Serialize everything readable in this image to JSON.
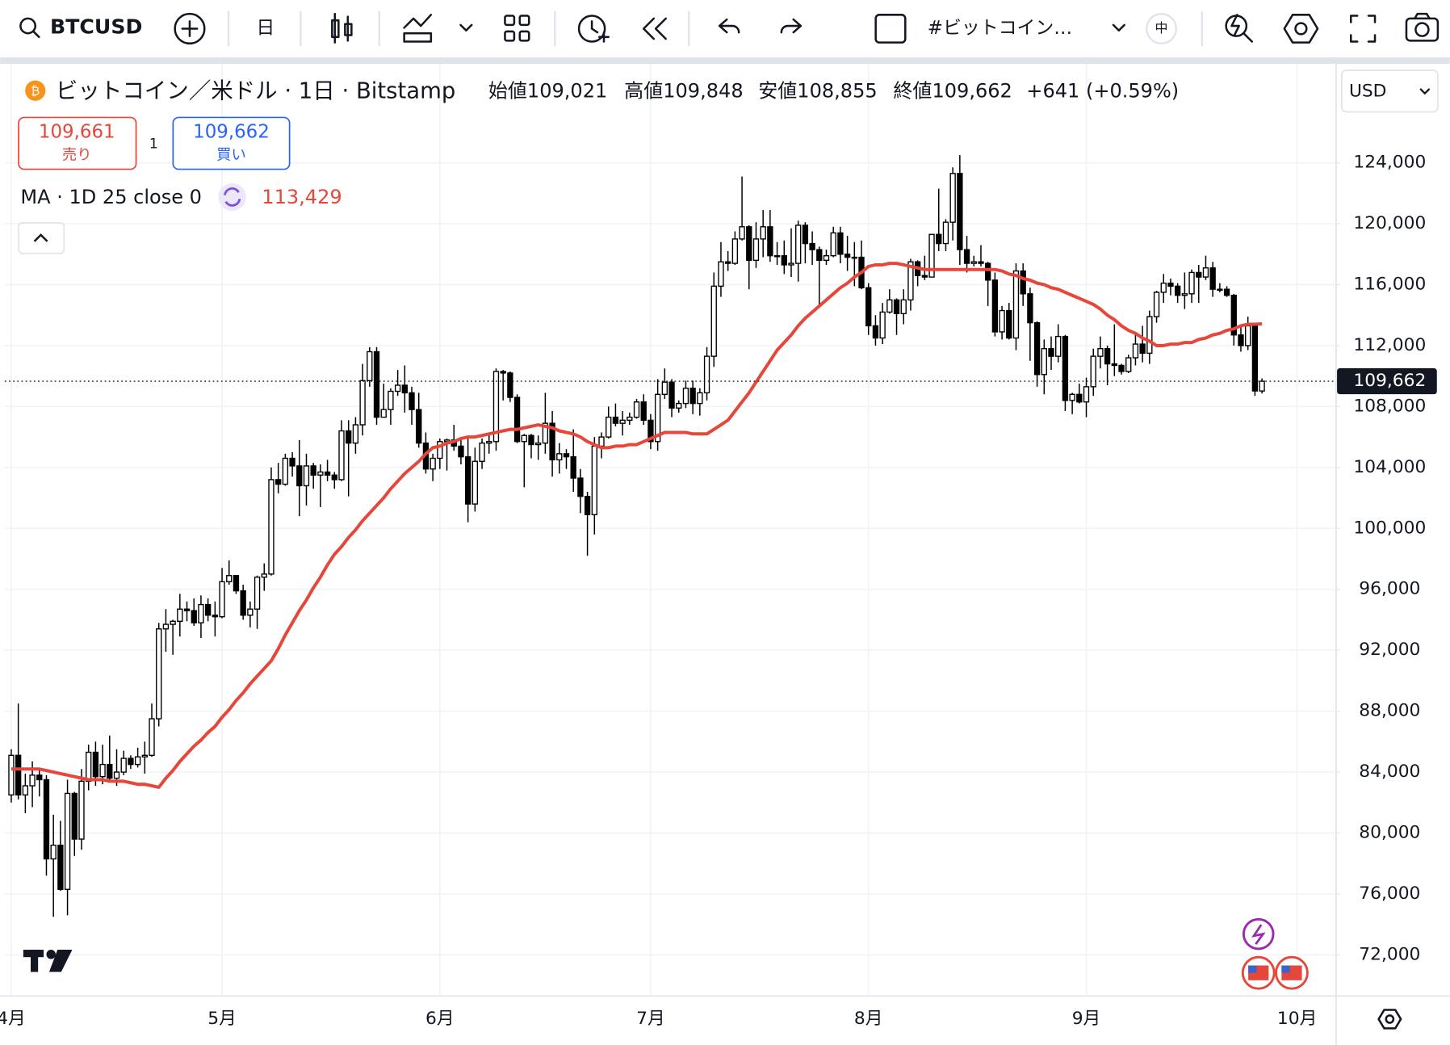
{
  "toolbar": {
    "symbol": "BTCUSD",
    "interval": "日",
    "watchlist": "#ビットコイン…",
    "lang": "中"
  },
  "legend": {
    "title": "ビットコイン／米ドル · 1日 · Bitstamp",
    "stats": [
      {
        "name": "始値",
        "value": "109,021"
      },
      {
        "name": "高値",
        "value": "109,848"
      },
      {
        "name": "安値",
        "value": "108,855"
      },
      {
        "name": "終値",
        "value": "109,662"
      }
    ],
    "change": "+641 (+0.59%)",
    "sell": {
      "price": "109,661",
      "label": "売り"
    },
    "spread": "1",
    "buy": {
      "price": "109,662",
      "label": "買い"
    },
    "currency": "USD"
  },
  "chart_data": {
    "type": "candlestick",
    "categories": [
      "4月",
      null,
      null,
      null,
      null,
      null,
      null,
      null,
      null,
      null,
      null,
      null,
      null,
      null,
      null,
      null,
      null,
      null,
      null,
      null,
      null,
      null,
      null,
      null,
      null,
      null,
      null,
      null,
      null,
      null,
      "5月",
      null,
      null,
      null,
      null,
      null,
      null,
      null,
      null,
      null,
      null,
      null,
      null,
      null,
      null,
      null,
      null,
      null,
      null,
      null,
      null,
      null,
      null,
      null,
      null,
      null,
      null,
      null,
      null,
      null,
      null,
      "6月",
      null,
      null,
      null,
      null,
      null,
      null,
      null,
      null,
      null,
      null,
      null,
      null,
      null,
      null,
      null,
      null,
      null,
      null,
      null,
      null,
      null,
      null,
      null,
      null,
      null,
      null,
      null,
      null,
      null,
      "7月",
      null,
      null,
      null,
      null,
      null,
      null,
      null,
      null,
      null,
      null,
      null,
      null,
      null,
      null,
      null,
      null,
      null,
      null,
      null,
      null,
      null,
      null,
      null,
      null,
      null,
      null,
      null,
      null,
      null,
      null,
      "8月",
      null,
      null,
      null,
      null,
      null,
      null,
      null,
      null,
      null,
      null,
      null,
      null,
      null,
      null,
      null,
      null,
      null,
      null,
      null,
      null,
      null,
      null,
      null,
      null,
      null,
      null,
      null,
      null,
      null,
      null,
      "9月",
      null,
      null,
      null,
      null,
      null,
      null,
      null,
      null,
      null,
      null,
      null,
      null,
      null,
      null,
      null,
      null,
      null,
      null,
      null,
      null,
      null,
      null,
      null,
      null,
      null,
      null,
      null,
      null,
      null,
      "10月",
      null,
      null,
      null,
      null,
      null,
      null
    ],
    "open": [
      82500,
      85100,
      82500,
      83100,
      83800,
      83500,
      78300,
      79200,
      76300,
      82600,
      79600,
      83400,
      85300,
      83700,
      84500,
      83600,
      84000,
      84900,
      84500,
      85000,
      85100,
      87500,
      93400,
      93700,
      93900,
      94700,
      94600,
      93800,
      95000,
      94300,
      94200,
      96500,
      96900,
      95900,
      94300,
      94700,
      96800,
      97000,
      103200,
      102900,
      104600,
      104100,
      102800,
      104100,
      103500,
      103700,
      103500,
      103200,
      106400,
      105600,
      106800,
      109700,
      111600,
      107300,
      107800,
      109000,
      109400,
      108900,
      107800,
      105600,
      103900,
      104600,
      105700,
      105800,
      105400,
      104700,
      101600,
      104400,
      105600,
      105700,
      110300,
      110200,
      108600,
      105700,
      106100,
      105500,
      105600,
      106900,
      104500,
      104900,
      104700,
      103300,
      102100,
      100900,
      105400,
      106000,
      107300,
      106900,
      107100,
      107300,
      108300,
      107100,
      105700,
      108800,
      109600,
      107900,
      108200,
      109200,
      108200,
      108900,
      111300,
      115900,
      117500,
      117400,
      119000,
      119800,
      117600,
      119000,
      119800,
      117900,
      117900,
      117300,
      117400,
      119900,
      118700,
      118300,
      117600,
      117900,
      119400,
      118000,
      117800,
      117800,
      115800,
      113300,
      112500,
      114200,
      115000,
      114100,
      115000,
      117500,
      116600,
      116500,
      119300,
      118700,
      120100,
      123300,
      118300,
      117400,
      117500,
      117400,
      116300,
      112900,
      114300,
      112500,
      116900,
      115400,
      113500,
      110100,
      111800,
      111300,
      112600,
      108400,
      108800,
      108300,
      109300,
      111300,
      111800,
      110800,
      110700,
      110300,
      111200,
      112100,
      111500,
      113900,
      115500,
      116100,
      115900,
      115300,
      115400,
      116800,
      116500,
      117100,
      115700,
      115700,
      115300,
      112700,
      112000,
      113300,
      109021,
      null,
      null,
      null,
      null,
      null,
      null,
      null,
      null,
      null,
      null,
      null
    ],
    "high": [
      85500,
      88500,
      83900,
      84700,
      84200,
      83800,
      81200,
      80800,
      83500,
      82700,
      84200,
      85800,
      86000,
      85800,
      86400,
      85500,
      85400,
      85100,
      85600,
      86000,
      88500,
      93800,
      94700,
      94000,
      95700,
      95200,
      95400,
      95600,
      95400,
      95200,
      97400,
      97900,
      96900,
      96300,
      95200,
      96900,
      97700,
      104000,
      104300,
      104900,
      105000,
      105800,
      104900,
      104300,
      104200,
      104500,
      103700,
      107100,
      107100,
      107300,
      110800,
      111900,
      111900,
      109500,
      109200,
      110400,
      110700,
      109300,
      108900,
      106300,
      104900,
      105900,
      105900,
      106800,
      106000,
      105900,
      105300,
      105900,
      106300,
      110500,
      110400,
      110300,
      108800,
      106200,
      106200,
      106100,
      108900,
      107700,
      105600,
      105200,
      106500,
      103900,
      102400,
      106000,
      106300,
      108000,
      108200,
      107700,
      107600,
      108500,
      108800,
      107500,
      109800,
      110500,
      109800,
      108400,
      109700,
      109700,
      109200,
      111900,
      116800,
      118800,
      118200,
      119500,
      123100,
      119900,
      120100,
      120900,
      120900,
      118800,
      118900,
      119700,
      120200,
      120100,
      119500,
      118500,
      118300,
      119800,
      119800,
      119200,
      118800,
      118900,
      116100,
      114000,
      114800,
      115700,
      115100,
      115700,
      117700,
      117600,
      117900,
      119300,
      122300,
      120300,
      123700,
      124500,
      119200,
      117900,
      118600,
      117500,
      116800,
      114600,
      114800,
      117400,
      117400,
      115800,
      113600,
      112400,
      112600,
      113400,
      112700,
      108900,
      109500,
      109900,
      111800,
      112600,
      112000,
      113400,
      110800,
      111400,
      112900,
      113300,
      114300,
      115600,
      116700,
      116400,
      116100,
      116800,
      117000,
      117300,
      117900,
      117500,
      116100,
      115900,
      115400,
      113300,
      113900,
      113400,
      109848,
      null,
      null,
      null,
      null,
      null,
      null,
      null,
      null,
      null,
      null,
      null
    ],
    "low": [
      82000,
      82200,
      81300,
      81700,
      82400,
      77200,
      74500,
      76200,
      74600,
      78500,
      78900,
      82800,
      83100,
      83200,
      83500,
      83100,
      83800,
      84200,
      84300,
      83900,
      85000,
      87000,
      91900,
      91700,
      92900,
      93900,
      93600,
      92800,
      93900,
      92900,
      94100,
      96300,
      95700,
      94000,
      93500,
      93400,
      95900,
      96900,
      102300,
      102800,
      103400,
      100800,
      101500,
      102600,
      101400,
      103100,
      102600,
      103100,
      102100,
      104900,
      106100,
      109300,
      106800,
      107300,
      106800,
      108700,
      107600,
      106800,
      105300,
      103600,
      103100,
      103900,
      103800,
      105100,
      104200,
      100400,
      101100,
      103900,
      104900,
      105100,
      108400,
      108300,
      105600,
      102700,
      104600,
      104500,
      104900,
      103400,
      103600,
      103900,
      102400,
      101000,
      98200,
      99600,
      104600,
      105900,
      106700,
      106100,
      106800,
      107200,
      106800,
      105200,
      105100,
      108500,
      107300,
      107600,
      107900,
      107500,
      107400,
      108400,
      110600,
      115200,
      116900,
      117300,
      118900,
      115700,
      117100,
      117800,
      117500,
      117300,
      116700,
      116500,
      116200,
      117400,
      117300,
      114700,
      117300,
      117800,
      117400,
      116900,
      115900,
      115700,
      112700,
      112000,
      112100,
      114100,
      112700,
      113400,
      114300,
      115900,
      116300,
      116500,
      118200,
      118200,
      118900,
      117300,
      116800,
      117200,
      117200,
      114600,
      112600,
      112400,
      112400,
      111700,
      114600,
      111000,
      109300,
      108800,
      110400,
      110900,
      107700,
      107500,
      108200,
      107300,
      108700,
      110500,
      109400,
      110000,
      110100,
      110200,
      110700,
      110900,
      110800,
      113500,
      114800,
      115300,
      114800,
      114400,
      114800,
      114800,
      116300,
      115200,
      115500,
      115200,
      112000,
      111600,
      111700,
      108700,
      108855,
      null,
      null,
      null,
      null,
      null,
      null,
      null,
      null,
      null,
      null,
      null
    ],
    "close": [
      85100,
      82500,
      83100,
      83800,
      83500,
      78300,
      79200,
      76300,
      82600,
      79600,
      83400,
      85300,
      83700,
      84500,
      83600,
      84000,
      84900,
      84500,
      85000,
      85100,
      87500,
      93400,
      93700,
      93900,
      94700,
      94600,
      93800,
      95000,
      94300,
      94200,
      96500,
      96900,
      95900,
      94300,
      94700,
      96800,
      97000,
      103200,
      102900,
      104600,
      104100,
      102800,
      104100,
      103500,
      103700,
      103500,
      103200,
      106400,
      105600,
      106800,
      109700,
      111600,
      107300,
      107800,
      109000,
      109400,
      108900,
      107800,
      105600,
      103900,
      104600,
      105700,
      105800,
      105400,
      104700,
      101600,
      104400,
      105600,
      105700,
      110300,
      110200,
      108600,
      105700,
      106100,
      105500,
      105600,
      106900,
      104500,
      104900,
      104700,
      103300,
      102100,
      100900,
      105400,
      106000,
      107300,
      106900,
      107100,
      107300,
      108300,
      107100,
      105700,
      108800,
      109600,
      107900,
      108200,
      109200,
      108200,
      108900,
      111300,
      115900,
      117500,
      117400,
      119000,
      119800,
      117600,
      119000,
      119800,
      117900,
      117900,
      117300,
      117400,
      119900,
      118700,
      118300,
      117600,
      117900,
      119400,
      118000,
      117800,
      117800,
      115800,
      113300,
      112500,
      114200,
      115000,
      114100,
      115000,
      117500,
      116600,
      116500,
      119300,
      118700,
      120100,
      123300,
      118300,
      117400,
      117500,
      117400,
      116300,
      112900,
      114300,
      112500,
      116900,
      115400,
      113500,
      110100,
      111800,
      111300,
      112600,
      108400,
      108800,
      108300,
      109300,
      111300,
      111800,
      110800,
      110700,
      110300,
      111200,
      112100,
      111500,
      113900,
      115500,
      116100,
      115900,
      115300,
      115400,
      116800,
      116500,
      117100,
      115700,
      115700,
      115300,
      112700,
      112000,
      113300,
      109021,
      109662,
      null,
      null,
      null,
      null,
      null,
      null,
      null,
      null,
      null,
      null,
      null
    ],
    "up_color": "#ffffff",
    "down_color": "#000000",
    "overlays": [
      {
        "name": "MA · 1D 25 close 0",
        "color": "#e5473b",
        "last_label": "113,429",
        "values": [
          84200,
          84200,
          84200,
          84200,
          84200,
          84100,
          84000,
          83900,
          83800,
          83700,
          83600,
          83500,
          83500,
          83500,
          83400,
          83400,
          83400,
          83300,
          83200,
          83200,
          83100,
          83000,
          83600,
          84100,
          84700,
          85200,
          85700,
          86100,
          86600,
          87000,
          87600,
          88100,
          88700,
          89200,
          89800,
          90300,
          90800,
          91300,
          92100,
          93000,
          93800,
          94600,
          95300,
          96100,
          96800,
          97600,
          98300,
          98800,
          99400,
          99900,
          100500,
          101000,
          101500,
          102000,
          102600,
          103100,
          103600,
          104000,
          104400,
          104900,
          105300,
          105400,
          105600,
          105700,
          105900,
          106000,
          106000,
          106100,
          106200,
          106300,
          106400,
          106500,
          106500,
          106600,
          106700,
          106800,
          106700,
          106600,
          106400,
          106300,
          106200,
          106000,
          105700,
          105500,
          105300,
          105300,
          105400,
          105400,
          105500,
          105500,
          105700,
          105900,
          106100,
          106300,
          106300,
          106300,
          106300,
          106200,
          106200,
          106200,
          106500,
          106800,
          107100,
          107700,
          108300,
          108900,
          109600,
          110300,
          111000,
          111700,
          112200,
          112700,
          113300,
          113800,
          114200,
          114600,
          115000,
          115400,
          115800,
          116100,
          116500,
          116800,
          117200,
          117300,
          117300,
          117400,
          117400,
          117300,
          117200,
          117100,
          117000,
          117000,
          117000,
          117000,
          117000,
          117000,
          117000,
          117000,
          117000,
          117000,
          117000,
          116900,
          116700,
          116600,
          116400,
          116300,
          116100,
          116000,
          115800,
          115700,
          115500,
          115300,
          115100,
          114900,
          114700,
          114400,
          114000,
          113700,
          113300,
          113000,
          112800,
          112500,
          112300,
          112000,
          112000,
          112100,
          112100,
          112200,
          112200,
          112400,
          112500,
          112700,
          112800,
          113000,
          113100,
          113300,
          113400,
          113400,
          113429,
          null,
          null,
          null,
          null,
          null,
          null,
          null,
          null,
          null,
          null,
          null
        ]
      }
    ],
    "ylim": [
      69300,
      130500
    ],
    "yticks": [
      {
        "value": 72000,
        "label": "72,000"
      },
      {
        "value": 76000,
        "label": "76,000"
      },
      {
        "value": 80000,
        "label": "80,000"
      },
      {
        "value": 84000,
        "label": "84,000"
      },
      {
        "value": 88000,
        "label": "88,000"
      },
      {
        "value": 92000,
        "label": "92,000"
      },
      {
        "value": 96000,
        "label": "96,000"
      },
      {
        "value": 100000,
        "label": "100,000"
      },
      {
        "value": 104000,
        "label": "104,000"
      },
      {
        "value": 108000,
        "label": "108,000"
      },
      {
        "value": 112000,
        "label": "112,000"
      },
      {
        "value": 116000,
        "label": "116,000"
      },
      {
        "value": 120000,
        "label": "120,000"
      },
      {
        "value": 124000,
        "label": "124,000"
      }
    ],
    "grid": true,
    "last_price": {
      "value": 109662,
      "label": "109,662"
    }
  }
}
